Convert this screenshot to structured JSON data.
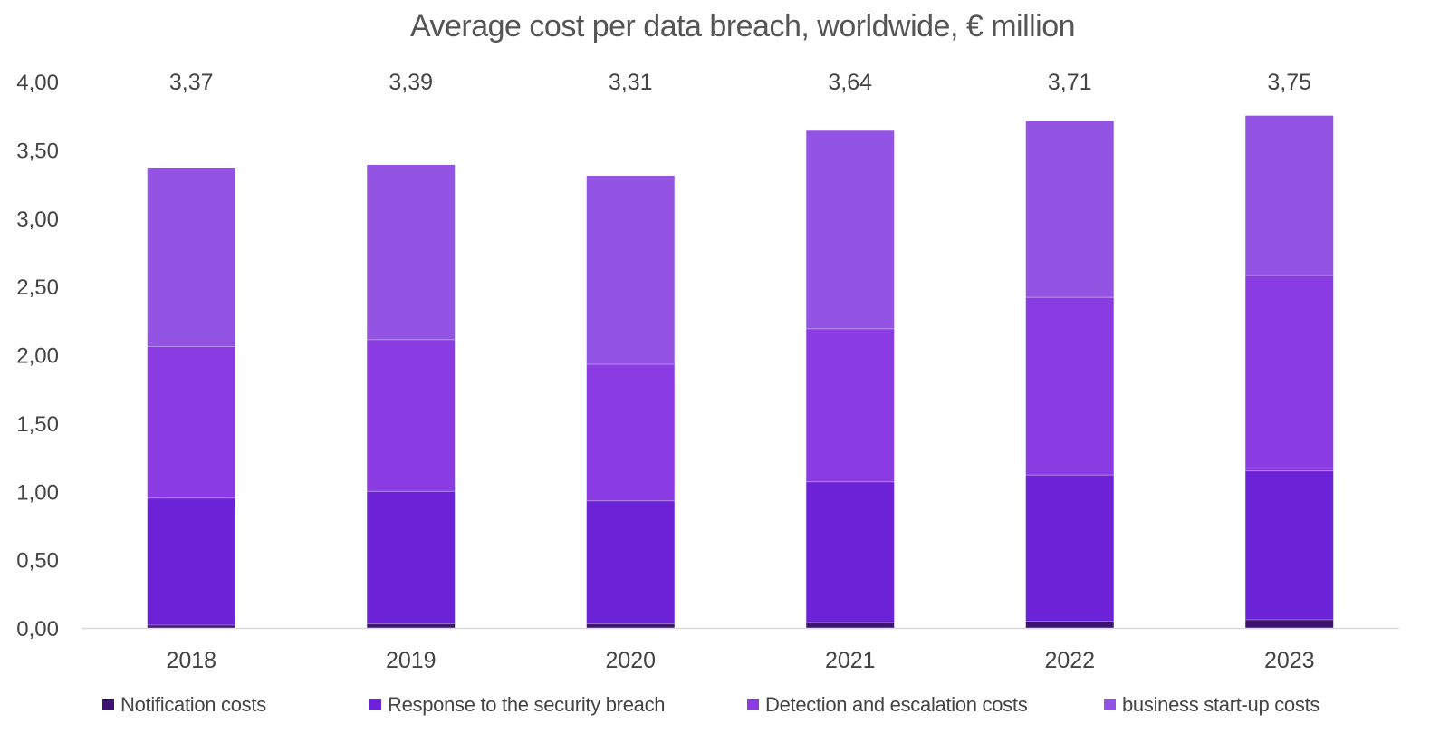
{
  "chart_data": {
    "type": "bar",
    "stacked": true,
    "title": "Average cost per data breach, worldwide, € million",
    "xlabel": "",
    "ylabel": "",
    "ylim": [
      0,
      4
    ],
    "yticks": [
      "0,00",
      "0,50",
      "1,00",
      "1,50",
      "2,00",
      "2,50",
      "3,00",
      "3,50",
      "4,00"
    ],
    "categories": [
      "2018",
      "2019",
      "2020",
      "2021",
      "2022",
      "2023"
    ],
    "totals": [
      "3,37",
      "3,39",
      "3,31",
      "3,64",
      "3,71",
      "3,75"
    ],
    "series": [
      {
        "name": "Notification costs",
        "color": "#3d1470",
        "values": [
          0.02,
          0.03,
          0.03,
          0.04,
          0.05,
          0.06
        ]
      },
      {
        "name": "Response to the security breach",
        "color": "#6c22d6",
        "values": [
          0.93,
          0.97,
          0.9,
          1.03,
          1.07,
          1.09
        ]
      },
      {
        "name": "Detection and escalation costs",
        "color": "#8a3ce2",
        "values": [
          1.11,
          1.11,
          1.0,
          1.12,
          1.3,
          1.43
        ]
      },
      {
        "name": "business start-up costs",
        "color": "#9353e3",
        "values": [
          1.31,
          1.28,
          1.38,
          1.45,
          1.29,
          1.17
        ]
      }
    ],
    "legend_position": "bottom",
    "grid": false
  }
}
